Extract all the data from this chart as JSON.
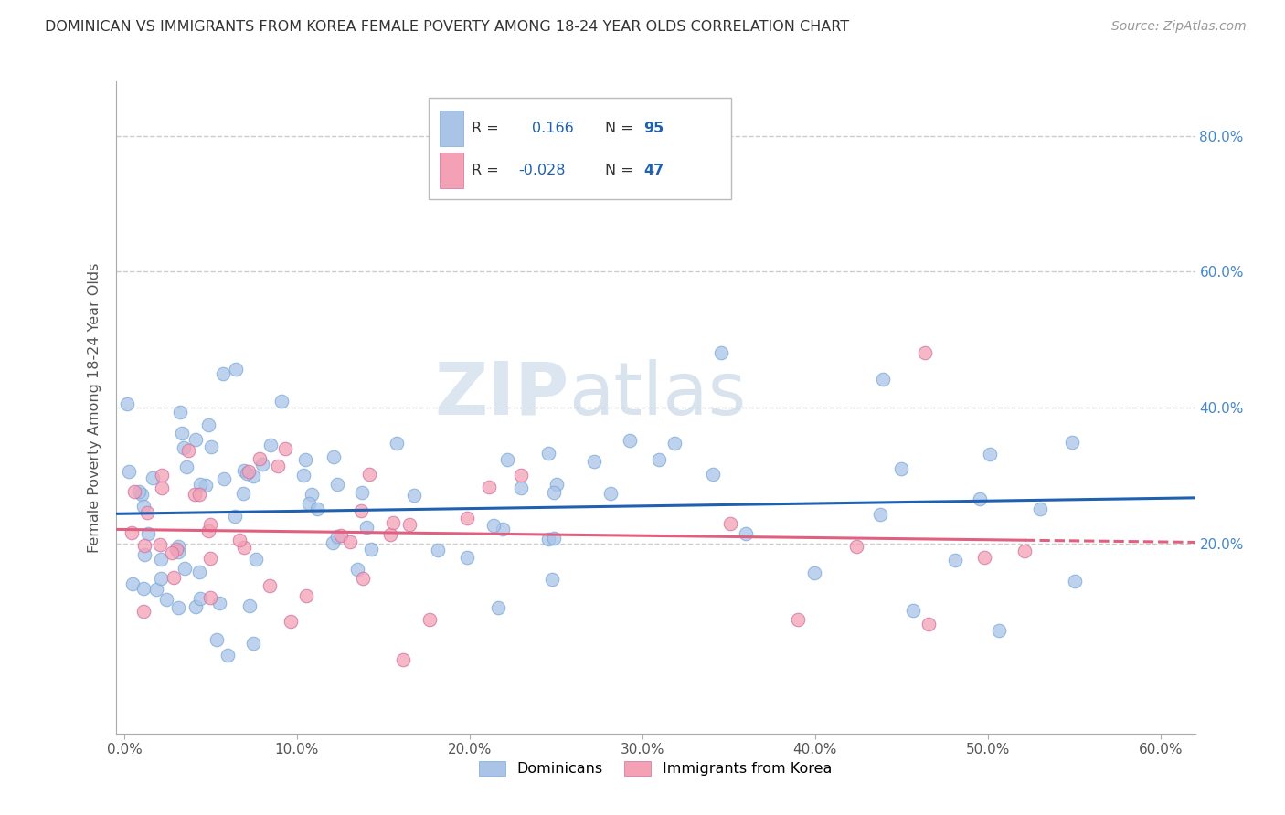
{
  "title": "DOMINICAN VS IMMIGRANTS FROM KOREA FEMALE POVERTY AMONG 18-24 YEAR OLDS CORRELATION CHART",
  "source": "Source: ZipAtlas.com",
  "ylabel": "Female Poverty Among 18-24 Year Olds",
  "xlim": [
    -0.005,
    0.62
  ],
  "ylim": [
    -0.08,
    0.88
  ],
  "xtick_vals": [
    0.0,
    0.1,
    0.2,
    0.3,
    0.4,
    0.5,
    0.6
  ],
  "ytick_vals": [
    0.2,
    0.4,
    0.6,
    0.8
  ],
  "grid_color": "#cccccc",
  "background_color": "#ffffff",
  "dominican_color": "#aac4e8",
  "korean_color": "#f4a0b5",
  "trend_dominican_color": "#2060b0",
  "trend_korean_color": "#e06080",
  "watermark_zip": "ZIP",
  "watermark_atlas": "atlas",
  "legend_r1_prefix": "R =  ",
  "legend_r1_val": "0.166",
  "legend_n1_prefix": "N = ",
  "legend_n1_val": "95",
  "legend_r2_prefix": "R = ",
  "legend_r2_val": "-0.028",
  "legend_n2_prefix": "N = ",
  "legend_n2_val": "47",
  "r_color": "#333333",
  "val_color": "#2060b0",
  "dom_seed": 101,
  "kor_seed": 202
}
